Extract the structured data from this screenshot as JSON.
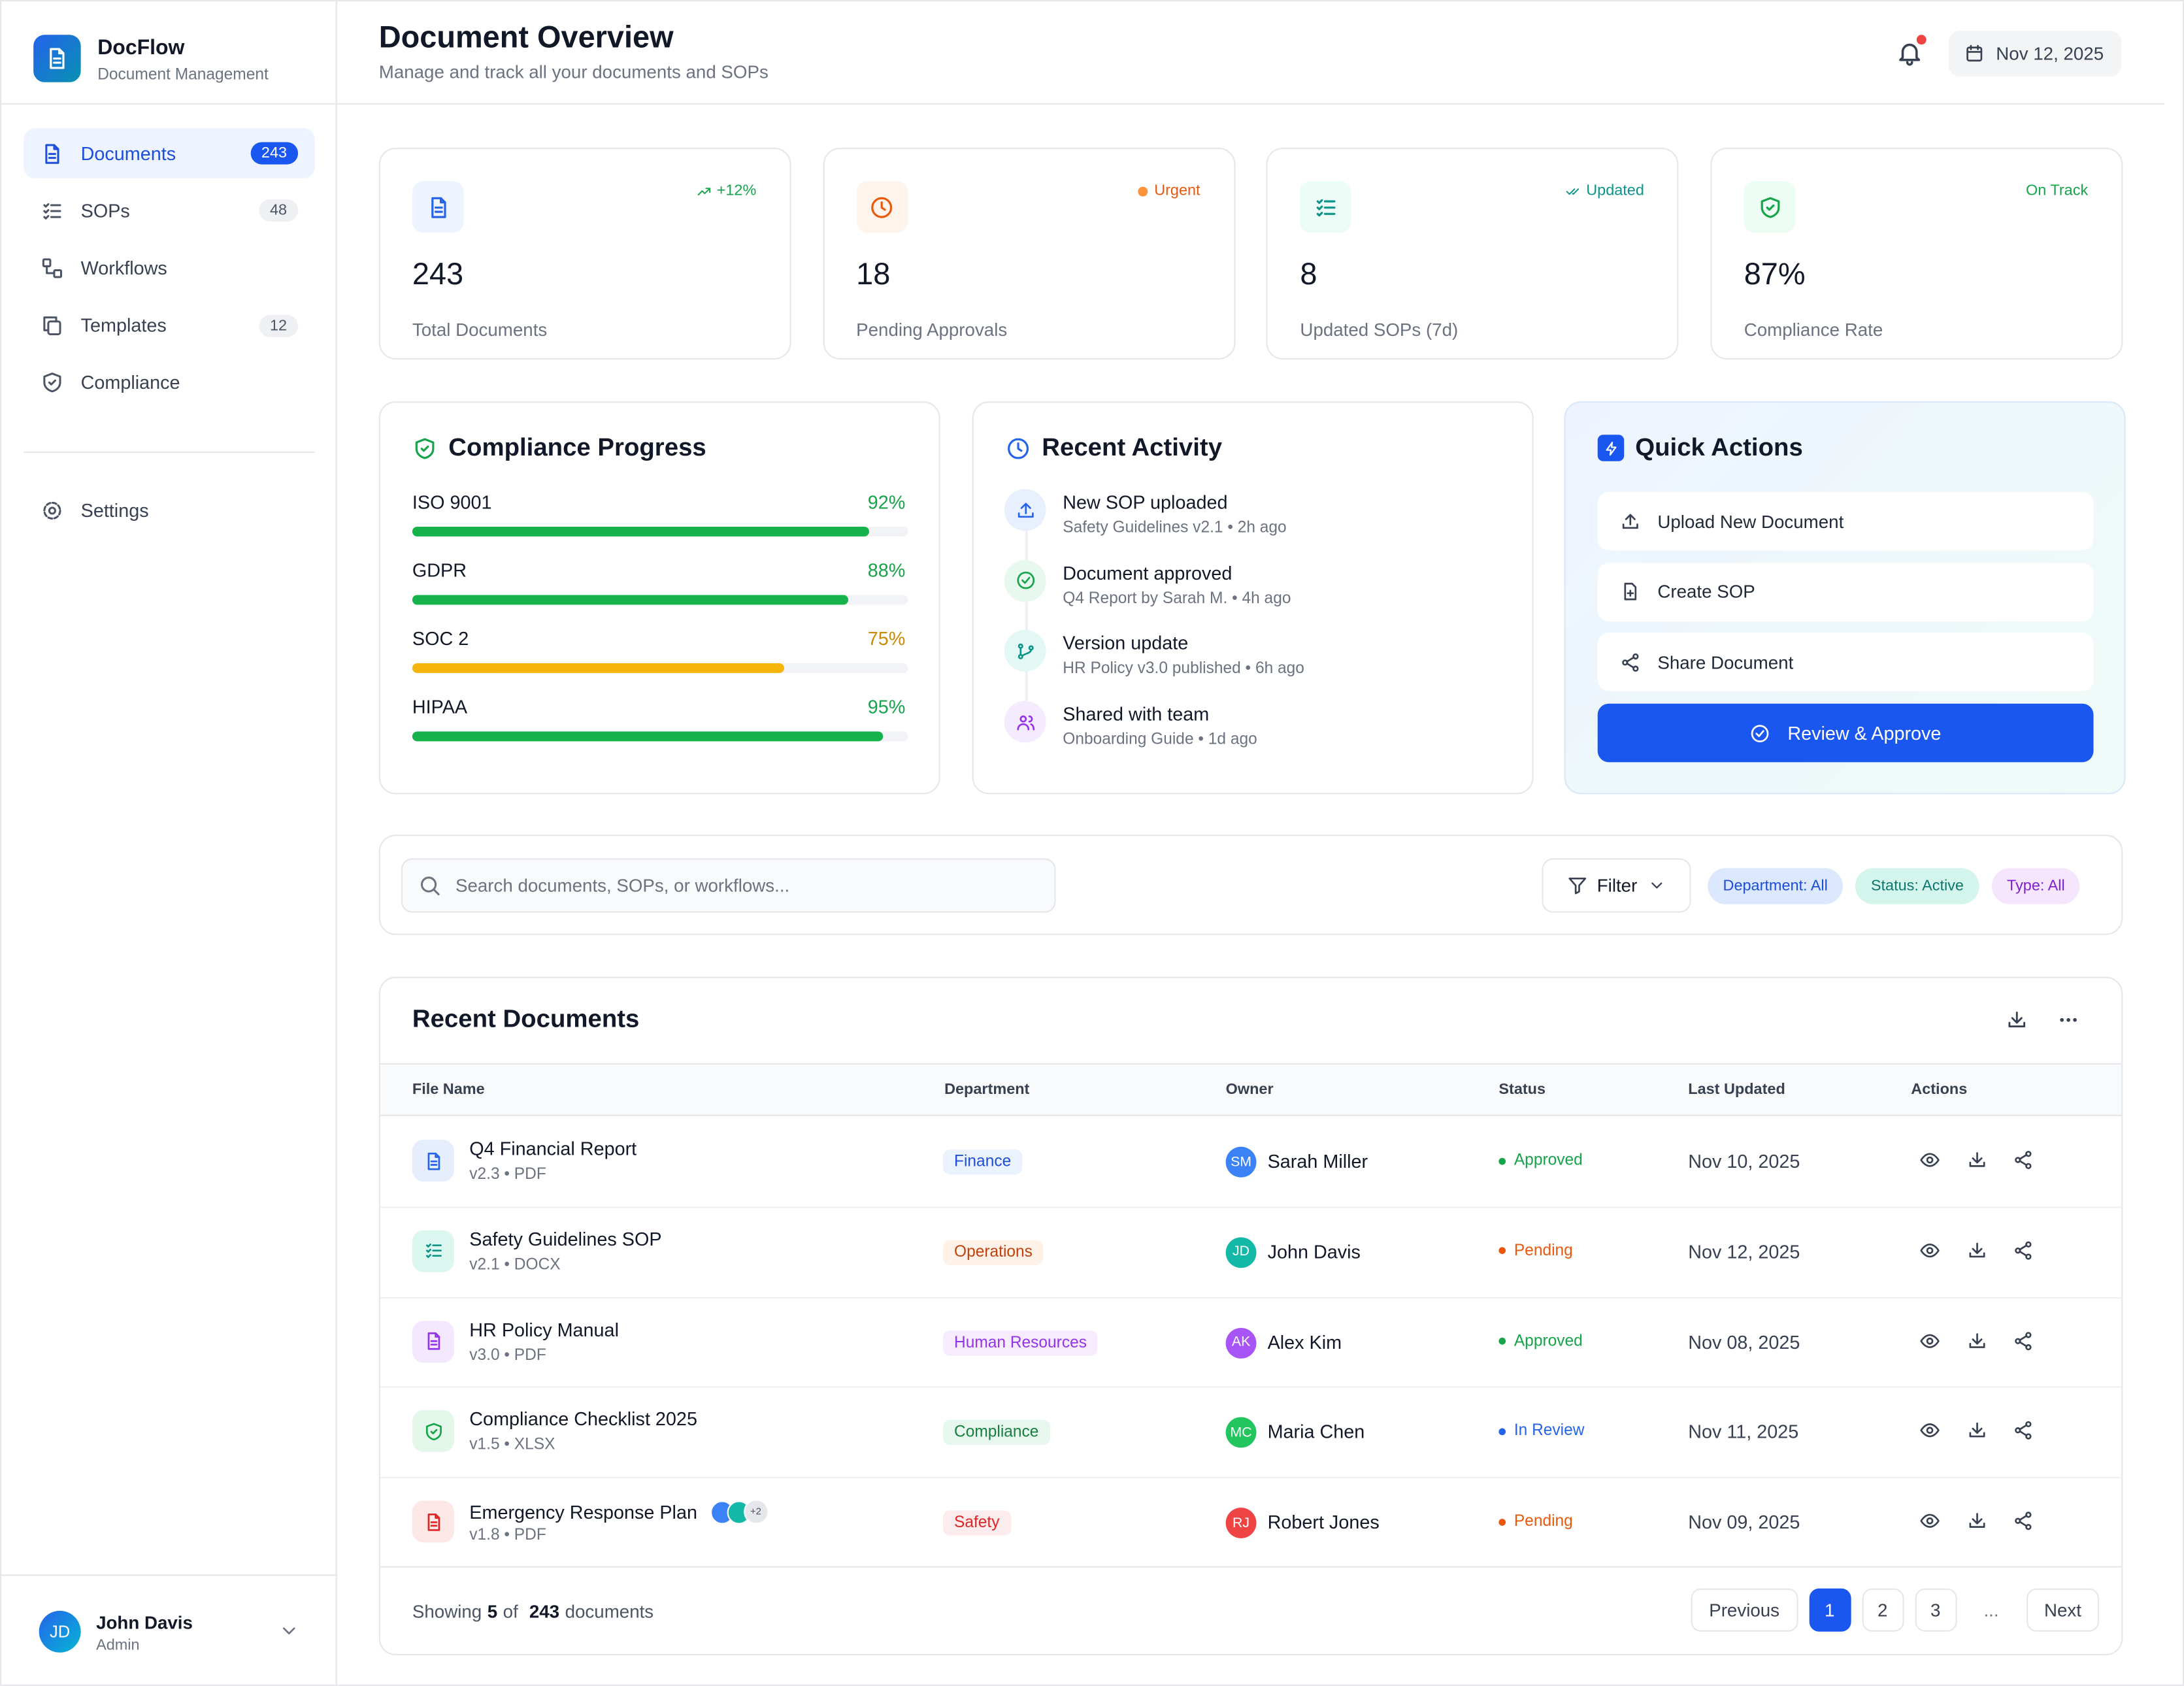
{
  "sidebar": {
    "brand": "DocFlow",
    "tagline": "Document Management",
    "nav": [
      {
        "label": "Documents",
        "badge": "243"
      },
      {
        "label": "SOPs",
        "badge": "48"
      },
      {
        "label": "Workflows"
      },
      {
        "label": "Templates",
        "badge": "12"
      },
      {
        "label": "Compliance"
      }
    ],
    "settings": "Settings",
    "user": {
      "initials": "JD",
      "name": "John Davis",
      "role": "Admin"
    }
  },
  "header": {
    "title": "Document Overview",
    "subtitle": "Manage and track all your documents and SOPs",
    "date": "Nov 12, 2025"
  },
  "stats": [
    {
      "value": "243",
      "label": "Total Documents",
      "tag": "+12%"
    },
    {
      "value": "18",
      "label": "Pending Approvals",
      "tag": "Urgent"
    },
    {
      "value": "8",
      "label": "Updated SOPs (7d)",
      "tag": "Updated"
    },
    {
      "value": "87%",
      "label": "Compliance Rate",
      "tag": "On Track"
    }
  ],
  "compliance": {
    "title": "Compliance Progress",
    "items": [
      {
        "name": "ISO 9001",
        "value": 92,
        "value_label": "92%"
      },
      {
        "name": "GDPR",
        "value": 88,
        "value_label": "88%"
      },
      {
        "name": "SOC 2",
        "value": 75,
        "value_label": "75%"
      },
      {
        "name": "HIPAA",
        "value": 95,
        "value_label": "95%"
      }
    ]
  },
  "activity": {
    "title": "Recent Activity",
    "items": [
      {
        "title": "New SOP uploaded",
        "detail": "Safety Guidelines v2.1 • 2h ago"
      },
      {
        "title": "Document approved",
        "detail": "Q4 Report by Sarah M. • 4h ago"
      },
      {
        "title": "Version update",
        "detail": "HR Policy v3.0 published • 6h ago"
      },
      {
        "title": "Shared with team",
        "detail": "Onboarding Guide • 1d ago"
      }
    ]
  },
  "quick_actions": {
    "title": "Quick Actions",
    "actions": [
      "Upload New Document",
      "Create SOP",
      "Share Document"
    ],
    "primary": "Review & Approve"
  },
  "search": {
    "placeholder": "Search documents, SOPs, or workflows...",
    "filter": "Filter",
    "chips": [
      "Department: All",
      "Status: Active",
      "Type: All"
    ]
  },
  "documents": {
    "title": "Recent Documents",
    "columns": [
      "File Name",
      "Department",
      "Owner",
      "Status",
      "Last Updated",
      "Actions"
    ],
    "rows": [
      {
        "name": "Q4 Financial Report",
        "meta": "v2.3 • PDF",
        "department": "Finance",
        "initials": "SM",
        "owner": "Sarah Miller",
        "status": "Approved",
        "updated": "Nov 10, 2025"
      },
      {
        "name": "Safety Guidelines SOP",
        "meta": "v2.1 • DOCX",
        "department": "Operations",
        "initials": "JD",
        "owner": "John Davis",
        "status": "Pending",
        "updated": "Nov 12, 2025"
      },
      {
        "name": "HR Policy Manual",
        "meta": "v3.0 • PDF",
        "department": "Human Resources",
        "initials": "AK",
        "owner": "Alex Kim",
        "status": "Approved",
        "updated": "Nov 08, 2025"
      },
      {
        "name": "Compliance Checklist 2025",
        "meta": "v1.5 • XLSX",
        "department": "Compliance",
        "initials": "MC",
        "owner": "Maria Chen",
        "status": "In Review",
        "updated": "Nov 11, 2025"
      },
      {
        "name": "Emergency Response Plan",
        "meta": "v1.8 • PDF",
        "department": "Safety",
        "initials": "RJ",
        "owner": "Robert Jones",
        "status": "Pending",
        "updated": "Nov 09, 2025",
        "extra": "+2"
      }
    ],
    "footer": {
      "prefix": "Showing",
      "shown": "5",
      "of": "of",
      "total": "243",
      "suffix": "documents"
    },
    "pagination": [
      "Previous",
      "1",
      "2",
      "3",
      "...",
      "Next"
    ]
  }
}
